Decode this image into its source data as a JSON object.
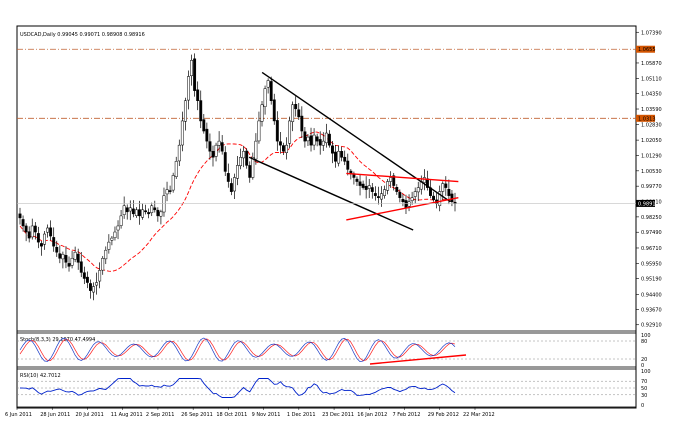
{
  "chart_title": "USDCAD,Daily  0.99045 0.99071 0.98908 0.98916",
  "colors": {
    "bull": "#000000",
    "bear": "#000000",
    "ma": "#ff0000",
    "resistance_line": "#c06030",
    "trendline_black": "#000000",
    "trendline_red": "#ff0000",
    "stoch_main": "#1a3cc8",
    "stoch_signal": "#ff2020",
    "rsi": "#0022cc",
    "level_tag_bg": "#d35400"
  },
  "price_axis": {
    "ticks": [
      "1.07390",
      "1.05870",
      "1.05110",
      "1.04350",
      "1.03590",
      "1.02830",
      "1.02050",
      "1.01290",
      "1.00530",
      "0.99770",
      "0.99010",
      "0.98250",
      "0.97490",
      "0.96710",
      "0.95950",
      "0.95190",
      "0.94400",
      "0.93670",
      "0.92910"
    ],
    "tags": [
      {
        "label": "1.0655",
        "value": 1.0655
      },
      {
        "label": "1.0313",
        "value": 1.0313
      }
    ],
    "current_label": "0.9891",
    "current_value": 0.98916
  },
  "date_axis": [
    "6 Jun 2011",
    "28 Jun 2011",
    "20 Jul 2011",
    "11 Aug 2011",
    "2 Sep 2011",
    "26 Sep 2011",
    "18 Oct 2011",
    "9 Nov 2011",
    "1 Dec 2011",
    "23 Dec 2011",
    "16 Jan 2012",
    "7 Feb 2012",
    "29 Feb 2012",
    "22 Mar 2012"
  ],
  "stoch": {
    "title": "Stoch(8,3,3) 29.1070 47.4994",
    "levels": [
      "100",
      "80",
      "20",
      "0"
    ]
  },
  "rsi": {
    "title": "RSI(10) 42.7012",
    "levels": [
      "100",
      "70",
      "50",
      "30",
      "0"
    ]
  },
  "chart_data": {
    "type": "candlestick",
    "symbol": "USDCAD",
    "timeframe": "Daily",
    "ohlc_current": {
      "open": 0.99045,
      "high": 0.99071,
      "low": 0.98908,
      "close": 0.98916
    },
    "ylim": [
      0.926,
      1.077
    ],
    "horizontal_levels": [
      1.0655,
      1.0313
    ],
    "x_labels": [
      "6 Jun 2011",
      "28 Jun 2011",
      "20 Jul 2011",
      "11 Aug 2011",
      "2 Sep 2011",
      "26 Sep 2011",
      "18 Oct 2011",
      "9 Nov 2011",
      "1 Dec 2011",
      "23 Dec 2011",
      "16 Jan 2012",
      "7 Feb 2012",
      "29 Feb 2012",
      "22 Mar 2012"
    ],
    "close_path": [
      0.982,
      0.978,
      0.975,
      0.972,
      0.978,
      0.975,
      0.97,
      0.968,
      0.974,
      0.977,
      0.973,
      0.968,
      0.965,
      0.962,
      0.964,
      0.96,
      0.958,
      0.962,
      0.965,
      0.96,
      0.955,
      0.952,
      0.95,
      0.946,
      0.948,
      0.95,
      0.956,
      0.962,
      0.966,
      0.97,
      0.972,
      0.975,
      0.978,
      0.983,
      0.988,
      0.985,
      0.987,
      0.984,
      0.986,
      0.983,
      0.986,
      0.985,
      0.984,
      0.988,
      0.986,
      0.983,
      0.985,
      0.993,
      0.996,
      0.995,
      1.003,
      1.01,
      1.018,
      1.03,
      1.04,
      1.052,
      1.06,
      1.045,
      1.04,
      1.03,
      1.025,
      1.02,
      1.015,
      1.012,
      1.018,
      1.02,
      1.015,
      1.005,
      1.0,
      0.995,
      1.002,
      1.008,
      1.012,
      1.015,
      1.008,
      1.002,
      1.012,
      1.02,
      1.03,
      1.038,
      1.046,
      1.05,
      1.04,
      1.03,
      1.02,
      1.018,
      1.015,
      1.018,
      1.03,
      1.038,
      1.036,
      1.032,
      1.025,
      1.02,
      1.022,
      1.018,
      1.023,
      1.02,
      1.018,
      1.02,
      1.024,
      1.018,
      1.014,
      1.01,
      1.015,
      1.012,
      1.01,
      1.006,
      1.004,
      1.002,
      1.0,
      0.998,
      0.997,
      0.996,
      0.998,
      0.995,
      0.993,
      0.992,
      0.994,
      0.996,
      1.0,
      1.002,
      0.998,
      0.995,
      0.992,
      0.99,
      0.987,
      0.99,
      0.992,
      0.995,
      0.997,
      1.0,
      1.002,
      0.997,
      0.993,
      0.991,
      0.989,
      0.995,
      0.999,
      0.997,
      0.993,
      0.99,
      0.989
    ],
    "trendlines": [
      {
        "color": "black",
        "from": [
          0.396,
          1.054
        ],
        "to": [
          0.7,
          0.99
        ]
      },
      {
        "color": "black",
        "from": [
          0.375,
          1.012
        ],
        "to": [
          0.64,
          0.976
        ]
      },
      {
        "color": "red",
        "from": [
          0.532,
          1.004
        ],
        "to": [
          0.713,
          1.0
        ]
      },
      {
        "color": "red",
        "from": [
          0.532,
          0.981
        ],
        "to": [
          0.713,
          0.992
        ]
      }
    ]
  }
}
